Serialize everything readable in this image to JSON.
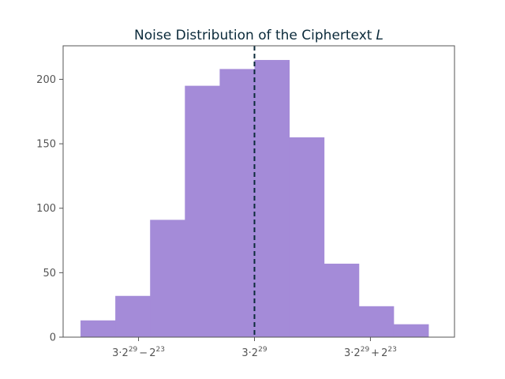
{
  "chart_data": {
    "type": "bar",
    "title": "Noise Distribution of the Ciphertext",
    "title_var": "L",
    "bin_edges": [
      -5,
      -4,
      -3,
      -2,
      -1,
      0,
      1,
      2,
      3,
      4,
      5
    ],
    "counts": [
      13,
      32,
      91,
      195,
      208,
      215,
      155,
      57,
      24,
      10
    ],
    "xlim": [
      -5.5,
      5.75
    ],
    "ylim": [
      0,
      226
    ],
    "ylabel": "",
    "xlabel": "",
    "y_ticks": [
      0,
      50,
      100,
      150,
      200
    ],
    "x_ticks": [
      {
        "value": -3.333,
        "base": "3·2",
        "exp1": "29",
        "op": "−",
        "base2": "2",
        "exp2": "23"
      },
      {
        "value": 0,
        "base": "3·2",
        "exp1": "29",
        "op": "",
        "base2": "",
        "exp2": ""
      },
      {
        "value": 3.333,
        "base": "3·2",
        "exp1": "29",
        "op": "+",
        "base2": "2",
        "exp2": "23"
      }
    ],
    "vline": {
      "x": 0,
      "style": "dashed"
    },
    "bar_color": "#a48bd8",
    "vline_color": "#0b2a3a",
    "grid": false
  }
}
